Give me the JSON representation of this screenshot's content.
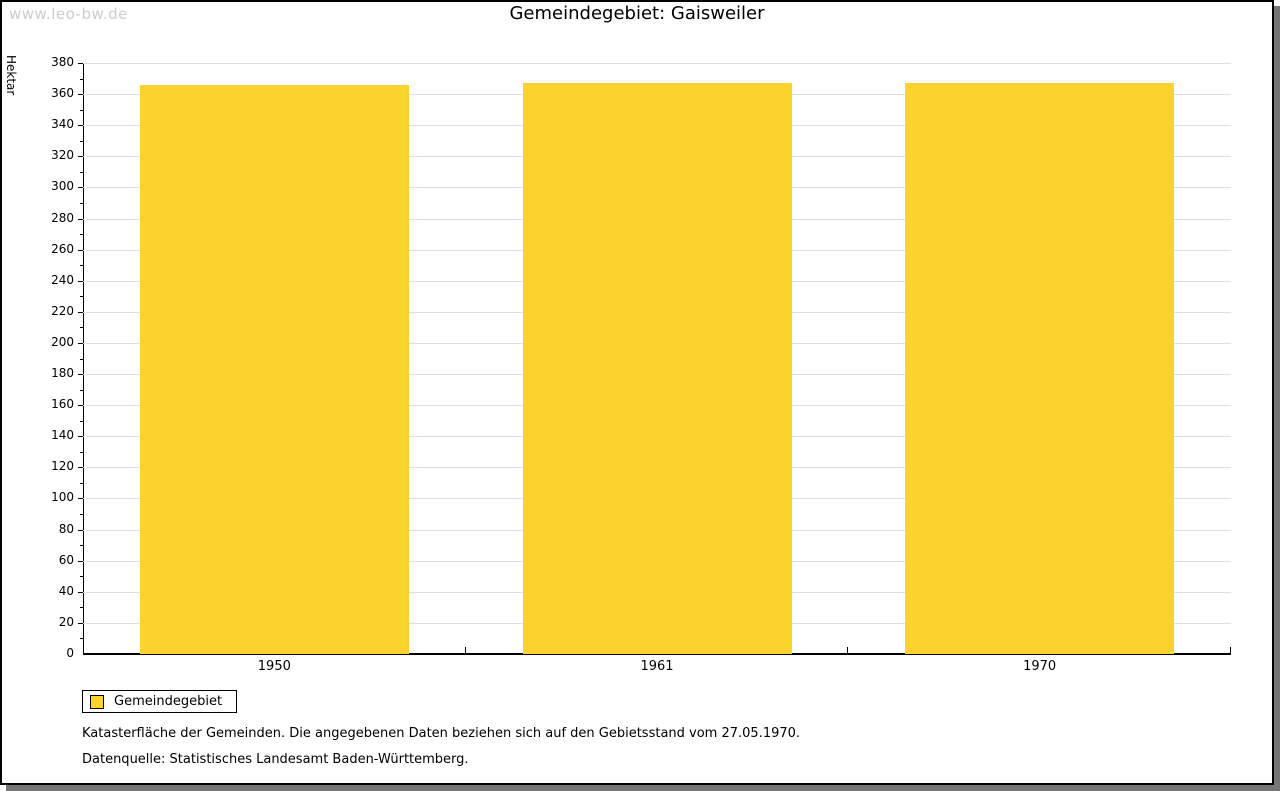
{
  "watermark": "www.leo-bw.de",
  "title": "Gemeindegebiet: Gaisweiler",
  "chart_data": {
    "type": "bar",
    "title": "Gemeindegebiet: Gaisweiler",
    "ylabel": "Hektar",
    "xlabel": "",
    "categories": [
      "1950",
      "1961",
      "1970"
    ],
    "series": [
      {
        "name": "Gemeindegebiet",
        "values": [
          366,
          367,
          367
        ]
      }
    ],
    "ylim": [
      0,
      380
    ],
    "ytick_step": 20,
    "ytick_minor_step": 10,
    "grid": true,
    "legend_position": "bottom-left",
    "bar_color": "#fcd32d"
  },
  "legend": {
    "label": "Gemeindegebiet",
    "swatch_color": "#fcd32d"
  },
  "captions": {
    "line1": "Katasterfläche der Gemeinden. Die angegebenen Daten beziehen sich auf den Gebietsstand vom 27.05.1970.",
    "line2": "Datenquelle: Statistisches Landesamt Baden-Württemberg."
  },
  "colors": {
    "bar": "#fcd32d",
    "gridline": "#e0e0e0",
    "axis": "#000000",
    "watermark": "#cccccc",
    "shadow": "#767676"
  }
}
